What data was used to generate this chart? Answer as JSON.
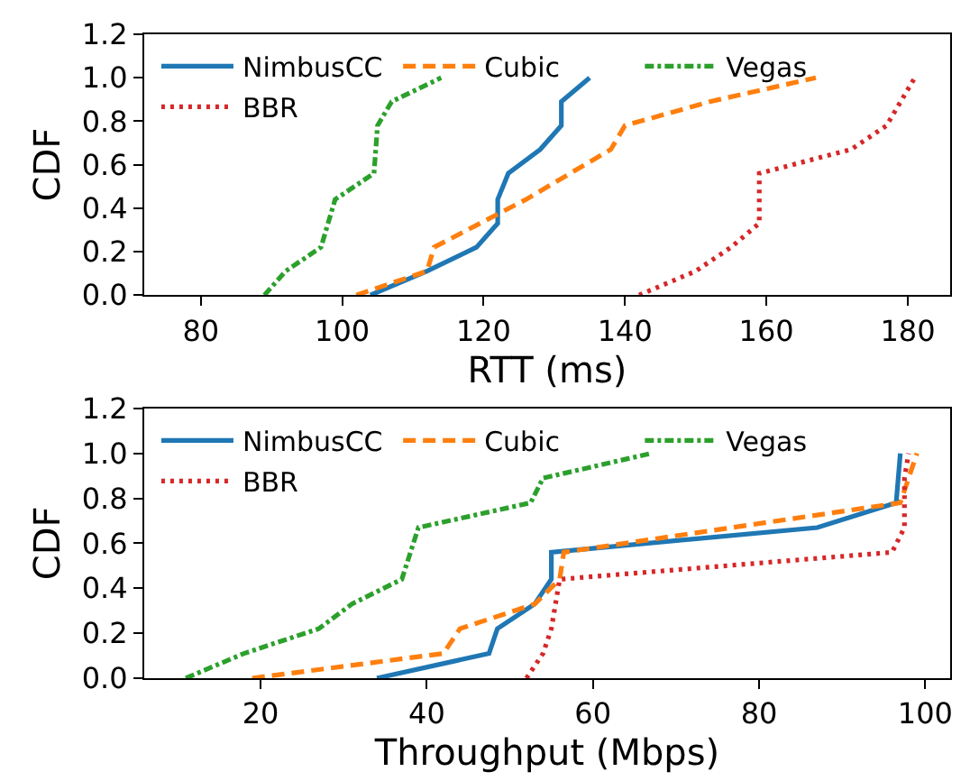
{
  "chart_data": [
    {
      "type": "line",
      "xlabel": "RTT (ms)",
      "ylabel": "CDF",
      "xlim": [
        72,
        186
      ],
      "ylim": [
        0,
        1.2
      ],
      "xticks": [
        80,
        100,
        120,
        140,
        160,
        180
      ],
      "yticks": [
        {
          "value": 0,
          "label": "0.0"
        },
        {
          "value": 0.2,
          "label": "0.2"
        },
        {
          "value": 0.4,
          "label": "0.4"
        },
        {
          "value": 0.6,
          "label": "0.6"
        },
        {
          "value": 0.8,
          "label": "0.8"
        },
        {
          "value": 1.0,
          "label": "1.0"
        },
        {
          "value": 1.2,
          "label": "1.2"
        }
      ],
      "legend": "top",
      "series": [
        {
          "name": "NimbusCC",
          "color": "#1f77b4",
          "line_style": "solid",
          "x": [
            104,
            112,
            119,
            122,
            122,
            123.5,
            128,
            131,
            131,
            135
          ],
          "values": [
            0,
            0.11,
            0.22,
            0.33,
            0.44,
            0.56,
            0.67,
            0.78,
            0.89,
            1.0
          ]
        },
        {
          "name": "Cubic",
          "color": "#ff7f0e",
          "line_style": "dashed",
          "x": [
            102,
            112,
            113,
            126,
            138,
            140,
            152,
            167
          ],
          "values": [
            0,
            0.11,
            0.22,
            0.44,
            0.67,
            0.78,
            0.89,
            1.0
          ]
        },
        {
          "name": "Vegas",
          "color": "#2ca02c",
          "line_style": "dashdot",
          "x": [
            89,
            92,
            97,
            99,
            104.5,
            105,
            107,
            114
          ],
          "values": [
            0,
            0.11,
            0.22,
            0.44,
            0.56,
            0.78,
            0.89,
            1.0
          ]
        },
        {
          "name": "BBR",
          "color": "#d62728",
          "line_style": "dotted",
          "x": [
            142,
            150,
            155,
            159,
            159,
            172,
            177,
            179,
            181
          ],
          "values": [
            0,
            0.11,
            0.22,
            0.33,
            0.56,
            0.67,
            0.78,
            0.89,
            1.0
          ]
        }
      ]
    },
    {
      "type": "line",
      "xlabel": "Throughput (Mbps)",
      "ylabel": "CDF",
      "xlim": [
        6,
        103
      ],
      "ylim": [
        0,
        1.2
      ],
      "xticks": [
        20,
        40,
        60,
        80,
        100
      ],
      "yticks": [
        {
          "value": 0,
          "label": "0.0"
        },
        {
          "value": 0.2,
          "label": "0.2"
        },
        {
          "value": 0.4,
          "label": "0.4"
        },
        {
          "value": 0.6,
          "label": "0.6"
        },
        {
          "value": 0.8,
          "label": "0.8"
        },
        {
          "value": 1.0,
          "label": "1.0"
        },
        {
          "value": 1.2,
          "label": "1.2"
        }
      ],
      "legend": "top",
      "series": [
        {
          "name": "NimbusCC",
          "color": "#1f77b4",
          "line_style": "solid",
          "x": [
            34,
            47.5,
            48.5,
            53,
            55,
            55,
            87,
            96.5,
            97
          ],
          "values": [
            0,
            0.11,
            0.22,
            0.33,
            0.44,
            0.56,
            0.67,
            0.78,
            1.0
          ]
        },
        {
          "name": "Cubic",
          "color": "#ff7f0e",
          "line_style": "dashed",
          "x": [
            19,
            42,
            44,
            53,
            56,
            56.5,
            97,
            98,
            99
          ],
          "values": [
            0,
            0.11,
            0.22,
            0.33,
            0.44,
            0.56,
            0.78,
            0.89,
            1.0
          ]
        },
        {
          "name": "Vegas",
          "color": "#2ca02c",
          "line_style": "dashdot",
          "x": [
            11,
            18,
            27,
            31,
            37,
            39,
            52.5,
            54,
            67
          ],
          "values": [
            0,
            0.11,
            0.22,
            0.33,
            0.44,
            0.67,
            0.78,
            0.89,
            1.0
          ]
        },
        {
          "name": "BBR",
          "color": "#d62728",
          "line_style": "dotted",
          "x": [
            52,
            54,
            55,
            56,
            96,
            97.5,
            97.5,
            97.5,
            98
          ],
          "values": [
            0,
            0.11,
            0.22,
            0.44,
            0.56,
            0.67,
            0.78,
            0.89,
            1.0
          ]
        }
      ]
    }
  ]
}
